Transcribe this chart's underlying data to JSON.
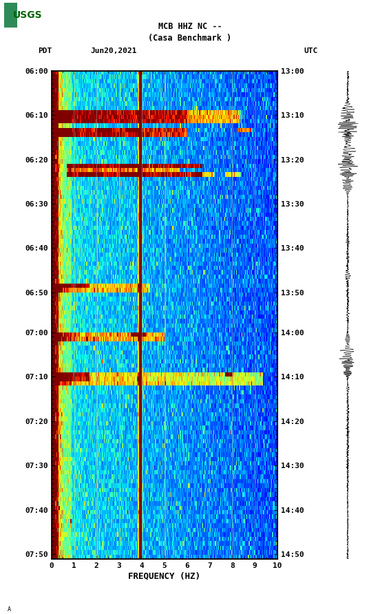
{
  "title_line1": "MCB HHZ NC --",
  "title_line2": "(Casa Benchmark )",
  "left_label": "PDT",
  "date_label": "Jun20,2021",
  "right_label": "UTC",
  "left_times": [
    "06:00",
    "06:10",
    "06:20",
    "06:30",
    "06:40",
    "06:50",
    "07:00",
    "07:10",
    "07:20",
    "07:30",
    "07:40",
    "07:50"
  ],
  "right_times": [
    "13:00",
    "13:10",
    "13:20",
    "13:30",
    "13:40",
    "13:50",
    "14:00",
    "14:10",
    "14:20",
    "14:30",
    "14:40",
    "14:50"
  ],
  "freq_min": 0,
  "freq_max": 10,
  "freq_ticks": [
    0,
    1,
    2,
    3,
    4,
    5,
    6,
    7,
    8,
    9,
    10
  ],
  "xlabel": "FREQUENCY (HZ)",
  "background_color": "#ffffff",
  "n_time": 110,
  "n_freq": 300,
  "vertical_lines_freq": [
    1.0,
    2.0,
    3.0,
    4.0,
    5.0,
    6.0,
    7.0,
    8.0,
    9.0
  ],
  "bright_line_freq": 3.9,
  "usgs_color": "#006400"
}
